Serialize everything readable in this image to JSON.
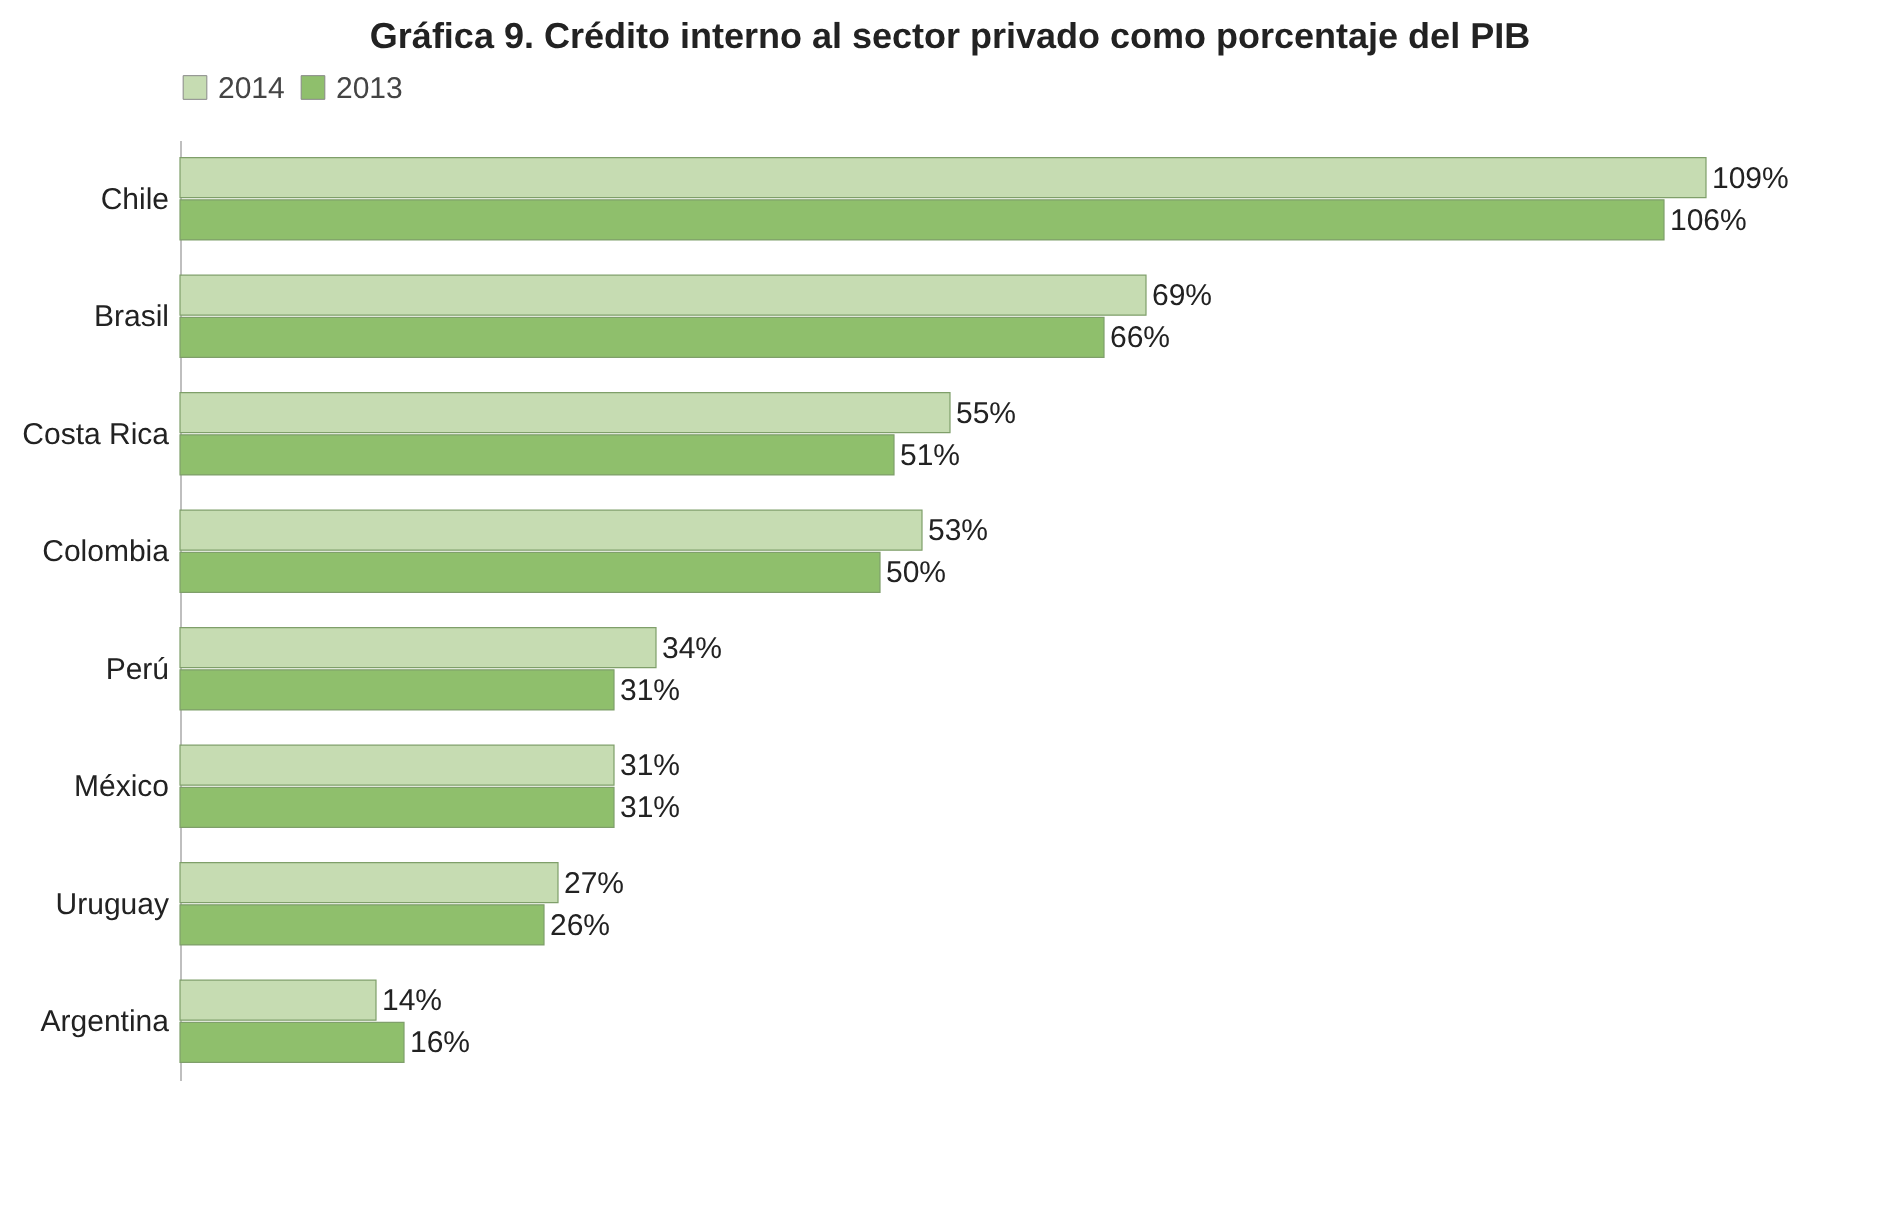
{
  "chart_data": {
    "type": "bar",
    "orientation": "horizontal",
    "title": "Gráfica 9. Crédito interno al sector privado como porcentaje del PIB",
    "categories": [
      "Chile",
      "Brasil",
      "Costa Rica",
      "Colombia",
      "Perú",
      "México",
      "Uruguay",
      "Argentina"
    ],
    "series": [
      {
        "name": "2014",
        "color": "#c6dcb2",
        "values": [
          109,
          69,
          55,
          53,
          34,
          31,
          27,
          14
        ],
        "value_labels": [
          "109%",
          "69%",
          "55%",
          "53%",
          "34%",
          "31%",
          "27%",
          "14%"
        ]
      },
      {
        "name": "2013",
        "color": "#8fbf6c",
        "values": [
          106,
          66,
          51,
          50,
          31,
          31,
          26,
          16
        ],
        "value_labels": [
          "106%",
          "66%",
          "51%",
          "50%",
          "31%",
          "31%",
          "26%",
          "16%"
        ]
      }
    ],
    "legend": "top",
    "grid": false
  }
}
